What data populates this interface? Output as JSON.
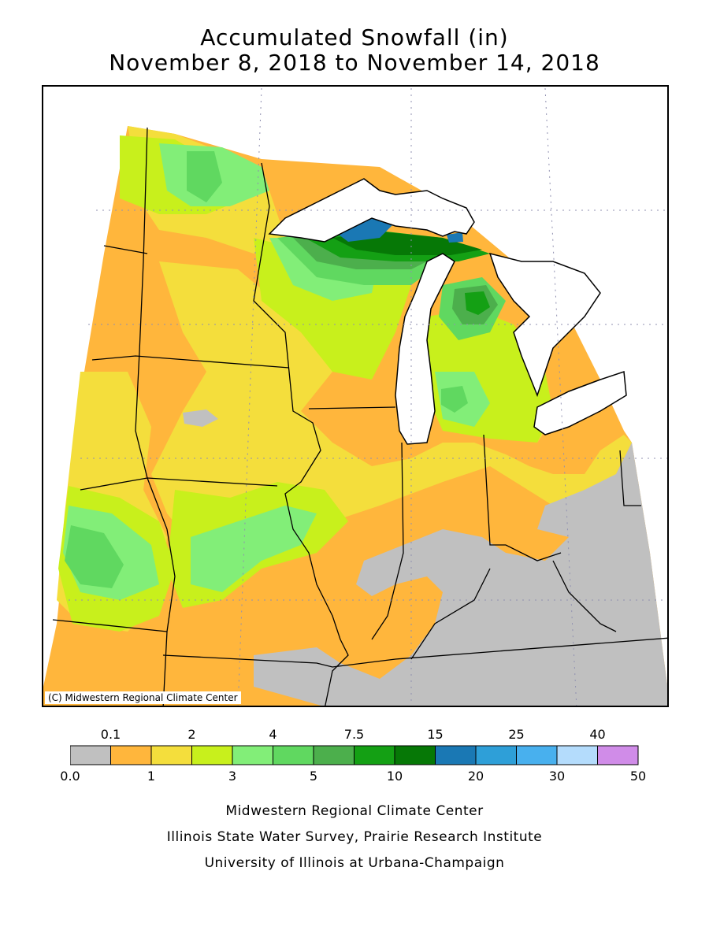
{
  "title_line1": "Accumulated Snowfall (in)",
  "title_line2": "November 8, 2018 to November 14, 2018",
  "copyright": "(C) Midwestern Regional Climate Center",
  "legend": {
    "colors": [
      "#c0c0c0",
      "#ffb63c",
      "#f4de3c",
      "#c8f01c",
      "#82ee78",
      "#60d860",
      "#4caf4c",
      "#14a014",
      "#067806",
      "#1a78b4",
      "#2e9fd8",
      "#48b0ee",
      "#b4dcfc",
      "#d08ce8"
    ],
    "top_labels": [
      "0.1",
      "2",
      "4",
      "7.5",
      "15",
      "25",
      "40"
    ],
    "bottom_labels": [
      "0.0",
      "1",
      "3",
      "5",
      "10",
      "20",
      "30",
      "50"
    ]
  },
  "credits": [
    "Midwestern Regional Climate Center",
    "Illinois State Water Survey, Prairie Research Institute",
    "University of Illinois at Urbana-Champaign"
  ]
}
